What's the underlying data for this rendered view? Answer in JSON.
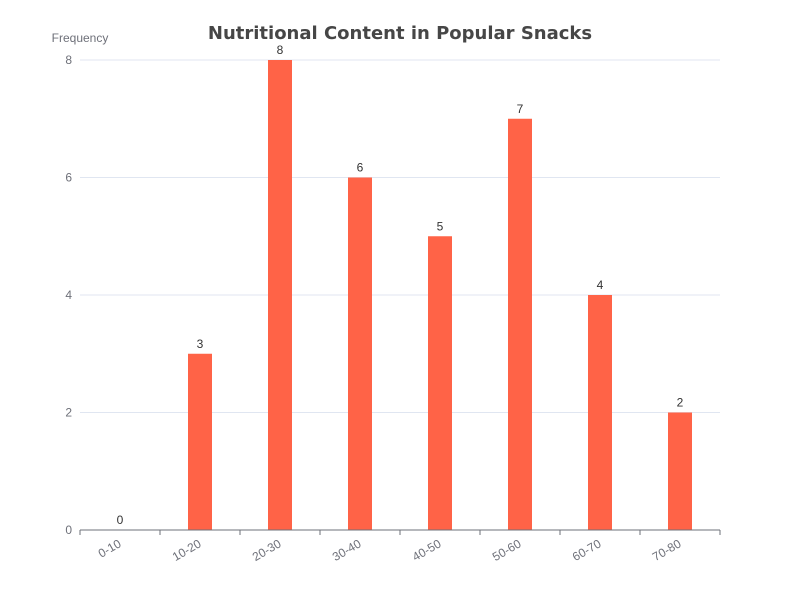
{
  "chart_data": {
    "type": "bar",
    "title": "Nutritional Content in Popular Snacks",
    "xlabel": "",
    "ylabel": "Frequency",
    "categories": [
      "0-10",
      "10-20",
      "20-30",
      "30-40",
      "40-50",
      "50-60",
      "60-70",
      "70-80"
    ],
    "values": [
      0,
      3,
      8,
      6,
      5,
      7,
      4,
      2
    ],
    "ylim": [
      0,
      8
    ],
    "yticks": [
      0,
      2,
      4,
      6,
      8
    ],
    "grid": true,
    "data_labels": true,
    "colors": {
      "bar": "#ff6347"
    }
  }
}
